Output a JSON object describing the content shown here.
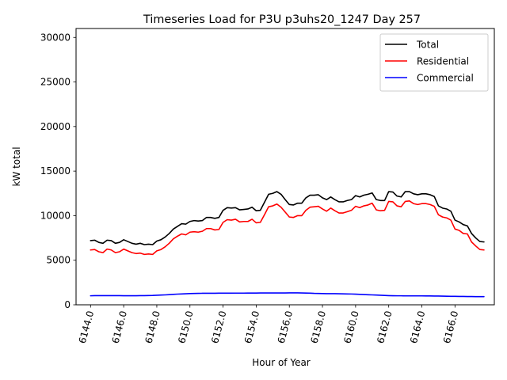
{
  "chart_data": {
    "type": "line",
    "title": "Timeseries Load for P3U p3uhs20_1247  Day 257",
    "xlabel": "Hour of Year",
    "ylabel": "kW total",
    "xlim": [
      6143.125,
      6168.375
    ],
    "ylim": [
      0,
      31000
    ],
    "xticks": [
      6144,
      6146,
      6148,
      6150,
      6152,
      6154,
      6156,
      6158,
      6160,
      6162,
      6164,
      6166
    ],
    "xtick_labels": [
      "6144.0",
      "6146.0",
      "6148.0",
      "6150.0",
      "6152.0",
      "6154.0",
      "6156.0",
      "6158.0",
      "6160.0",
      "6162.0",
      "6164.0",
      "6166.0"
    ],
    "yticks": [
      0,
      5000,
      10000,
      15000,
      20000,
      25000,
      30000
    ],
    "ytick_labels": [
      "0",
      "5000",
      "10000",
      "15000",
      "20000",
      "25000",
      "30000"
    ],
    "legend_position": "top-right",
    "x": [
      6144.0,
      6144.25,
      6144.5,
      6144.75,
      6145.0,
      6145.25,
      6145.5,
      6145.75,
      6146.0,
      6146.25,
      6146.5,
      6146.75,
      6147.0,
      6147.25,
      6147.5,
      6147.75,
      6148.0,
      6148.25,
      6148.5,
      6148.75,
      6149.0,
      6149.25,
      6149.5,
      6149.75,
      6150.0,
      6150.25,
      6150.5,
      6150.75,
      6151.0,
      6151.25,
      6151.5,
      6151.75,
      6152.0,
      6152.25,
      6152.5,
      6152.75,
      6153.0,
      6153.25,
      6153.5,
      6153.75,
      6154.0,
      6154.25,
      6154.5,
      6154.75,
      6155.0,
      6155.25,
      6155.5,
      6155.75,
      6156.0,
      6156.25,
      6156.5,
      6156.75,
      6157.0,
      6157.25,
      6157.5,
      6157.75,
      6158.0,
      6158.25,
      6158.5,
      6158.75,
      6159.0,
      6159.25,
      6159.5,
      6159.75,
      6160.0,
      6160.25,
      6160.5,
      6160.75,
      6161.0,
      6161.25,
      6161.5,
      6161.75,
      6162.0,
      6162.25,
      6162.5,
      6162.75,
      6163.0,
      6163.25,
      6163.5,
      6163.75,
      6164.0,
      6164.25,
      6164.5,
      6164.75,
      6165.0,
      6165.25,
      6165.5,
      6165.75,
      6166.0,
      6166.25,
      6166.5,
      6166.75,
      6167.0,
      6167.25,
      6167.5,
      6167.75
    ],
    "series": [
      {
        "name": "Total",
        "color": "#000000",
        "values": [
          7200,
          7250,
          7000,
          6900,
          7250,
          7200,
          6900,
          7000,
          7300,
          7100,
          6900,
          6800,
          6900,
          6750,
          6800,
          6750,
          7150,
          7300,
          7600,
          8000,
          8500,
          8800,
          9100,
          9050,
          9350,
          9450,
          9400,
          9450,
          9800,
          9800,
          9700,
          9800,
          10600,
          10900,
          10850,
          10900,
          10650,
          10700,
          10750,
          10950,
          10550,
          10600,
          11500,
          12400,
          12500,
          12700,
          12400,
          11800,
          11250,
          11200,
          11400,
          11400,
          12000,
          12300,
          12300,
          12350,
          12000,
          11800,
          12100,
          11800,
          11550,
          11550,
          11700,
          11800,
          12250,
          12100,
          12300,
          12400,
          12550,
          11800,
          11700,
          11700,
          12700,
          12650,
          12200,
          12100,
          12700,
          12700,
          12450,
          12350,
          12450,
          12450,
          12350,
          12150,
          11100,
          10850,
          10750,
          10500,
          9500,
          9300,
          9000,
          8850,
          8000,
          7500,
          7100,
          7050
        ]
      },
      {
        "name": "Residential",
        "color": "#ff0000",
        "values": [
          6150,
          6200,
          5950,
          5850,
          6250,
          6150,
          5850,
          5950,
          6250,
          6050,
          5850,
          5750,
          5800,
          5650,
          5700,
          5650,
          6050,
          6200,
          6500,
          6900,
          7400,
          7700,
          7950,
          7850,
          8150,
          8200,
          8150,
          8250,
          8550,
          8550,
          8400,
          8450,
          9250,
          9550,
          9500,
          9600,
          9300,
          9350,
          9350,
          9600,
          9200,
          9250,
          10100,
          11000,
          11100,
          11300,
          10950,
          10400,
          9850,
          9800,
          10000,
          10000,
          10600,
          10950,
          11000,
          11050,
          10750,
          10500,
          10850,
          10550,
          10300,
          10300,
          10450,
          10600,
          11050,
          10900,
          11100,
          11200,
          11400,
          10650,
          10550,
          10600,
          11600,
          11550,
          11100,
          11000,
          11600,
          11650,
          11350,
          11250,
          11350,
          11350,
          11250,
          11050,
          10100,
          9850,
          9750,
          9500,
          8500,
          8350,
          8000,
          7950,
          7050,
          6600,
          6200,
          6150
        ]
      },
      {
        "name": "Commercial",
        "color": "#0000ff",
        "values": [
          1010,
          1030,
          1030,
          1030,
          1030,
          1030,
          1030,
          1030,
          1020,
          1020,
          1020,
          1020,
          1030,
          1030,
          1040,
          1050,
          1070,
          1090,
          1110,
          1140,
          1170,
          1200,
          1220,
          1240,
          1260,
          1270,
          1280,
          1290,
          1290,
          1290,
          1290,
          1300,
          1300,
          1300,
          1300,
          1310,
          1310,
          1310,
          1320,
          1320,
          1320,
          1330,
          1330,
          1330,
          1330,
          1330,
          1330,
          1330,
          1340,
          1340,
          1340,
          1330,
          1320,
          1300,
          1280,
          1270,
          1260,
          1250,
          1250,
          1250,
          1240,
          1230,
          1220,
          1210,
          1190,
          1170,
          1150,
          1130,
          1110,
          1090,
          1070,
          1050,
          1030,
          1020,
          1010,
          1010,
          1000,
          1000,
          1000,
          1000,
          1000,
          990,
          990,
          980,
          980,
          970,
          960,
          950,
          950,
          940,
          940,
          930,
          930,
          920,
          920,
          920
        ]
      }
    ]
  }
}
